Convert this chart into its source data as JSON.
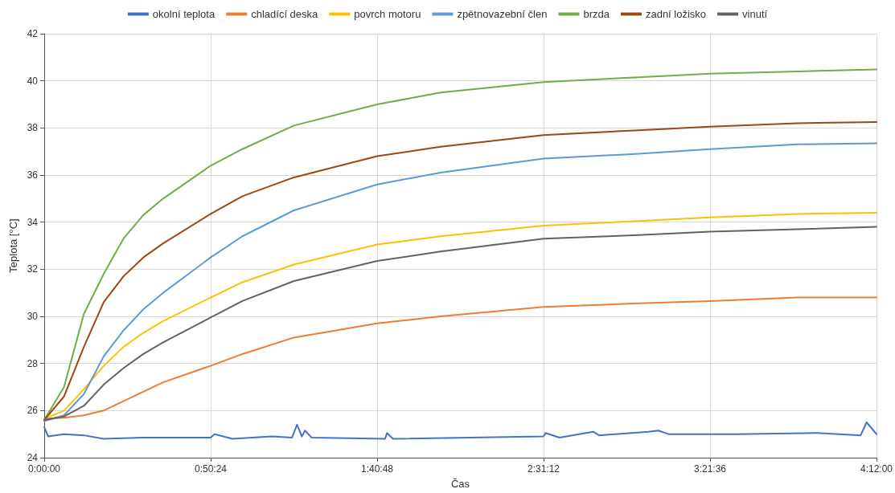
{
  "chart_data": {
    "type": "line",
    "xlabel": "Čas",
    "ylabel": "Teplota [°C]",
    "xlim": [
      0,
      4.2
    ],
    "ylim": [
      24,
      42
    ],
    "xticks": [
      {
        "value": 0,
        "label": "0:00:00"
      },
      {
        "value": 0.84,
        "label": "0:50:24"
      },
      {
        "value": 1.68,
        "label": "1:40:48"
      },
      {
        "value": 2.52,
        "label": "2:31:12"
      },
      {
        "value": 3.36,
        "label": "3:21:36"
      },
      {
        "value": 4.2,
        "label": "4:12:00"
      }
    ],
    "yticks": [
      24,
      26,
      28,
      30,
      32,
      34,
      36,
      38,
      40,
      42
    ],
    "grid": true,
    "legend": "top",
    "marker": "none",
    "line_style": "solid",
    "x": [
      0,
      0.1,
      0.2,
      0.3,
      0.4,
      0.5,
      0.6,
      0.84,
      1.0,
      1.26,
      1.68,
      2.0,
      2.52,
      3.0,
      3.36,
      3.8,
      4.2
    ],
    "series": [
      {
        "name": "okolní teplota",
        "color": "#4472c4",
        "x": [
          0,
          0.02,
          0.1,
          0.2,
          0.3,
          0.5,
          0.84,
          0.86,
          0.95,
          1.15,
          1.25,
          1.276,
          1.3,
          1.316,
          1.35,
          1.72,
          1.73,
          1.76,
          2.52,
          2.53,
          2.6,
          2.77,
          2.8,
          3.05,
          3.1,
          3.15,
          3.5,
          3.9,
          4.12,
          4.15,
          4.2
        ],
        "values": [
          25.3,
          24.9,
          25.0,
          24.95,
          24.8,
          24.85,
          24.85,
          25.0,
          24.8,
          24.9,
          24.85,
          25.4,
          24.9,
          25.15,
          24.85,
          24.8,
          25.05,
          24.8,
          24.9,
          25.05,
          24.85,
          25.1,
          24.95,
          25.1,
          25.15,
          25.0,
          25.0,
          25.05,
          24.95,
          25.5,
          25.0
        ]
      },
      {
        "name": "chladící deska",
        "color": "#ed7d31",
        "values": [
          25.65,
          25.7,
          25.8,
          26.0,
          26.4,
          26.8,
          27.2,
          27.9,
          28.4,
          29.1,
          29.7,
          30.0,
          30.4,
          30.55,
          30.65,
          30.8,
          30.8
        ]
      },
      {
        "name": "povrch motoru",
        "color": "#ffc000",
        "values": [
          25.65,
          26.0,
          26.9,
          27.9,
          28.7,
          29.3,
          29.8,
          30.8,
          31.45,
          32.2,
          33.05,
          33.4,
          33.85,
          34.05,
          34.2,
          34.35,
          34.4
        ]
      },
      {
        "name": "zpětnovazební člen",
        "color": "#5b9bd5",
        "values": [
          25.55,
          25.8,
          26.7,
          28.3,
          29.4,
          30.3,
          31.0,
          32.5,
          33.4,
          34.5,
          35.6,
          36.1,
          36.7,
          36.9,
          37.1,
          37.3,
          37.35
        ]
      },
      {
        "name": "brzda",
        "color": "#70ad47",
        "values": [
          25.6,
          27.0,
          30.1,
          31.8,
          33.3,
          34.3,
          35.0,
          36.4,
          37.1,
          38.1,
          39.0,
          39.5,
          39.95,
          40.15,
          40.3,
          40.4,
          40.48
        ]
      },
      {
        "name": "zadní ložisko",
        "color": "#9e480e",
        "values": [
          25.6,
          26.6,
          28.7,
          30.6,
          31.7,
          32.5,
          33.1,
          34.35,
          35.1,
          35.9,
          36.8,
          37.2,
          37.7,
          37.9,
          38.05,
          38.2,
          38.25
        ]
      },
      {
        "name": "vinutí",
        "color": "#636363",
        "values": [
          25.6,
          25.75,
          26.2,
          27.1,
          27.8,
          28.4,
          28.9,
          29.95,
          30.65,
          31.5,
          32.35,
          32.75,
          33.3,
          33.45,
          33.6,
          33.7,
          33.8
        ]
      }
    ]
  }
}
